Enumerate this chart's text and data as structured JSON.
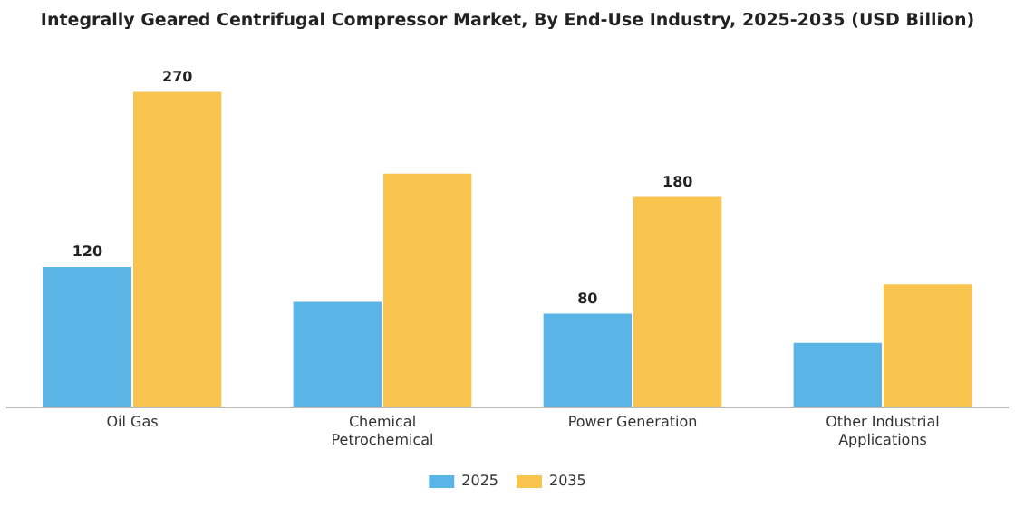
{
  "chart_data": {
    "type": "bar",
    "title": "Integrally Geared Centrifugal Compressor Market, By End-Use Industry, 2025-2035 (USD Billion)",
    "categories": [
      "Oil Gas",
      "Chemical Petrochemical",
      "Power Generation",
      "Other Industrial Applications"
    ],
    "series": [
      {
        "name": "2025",
        "color": "#5ab4e5",
        "values": [
          120,
          90,
          80,
          55
        ],
        "value_labels": [
          "120",
          null,
          "80",
          null
        ]
      },
      {
        "name": "2035",
        "color": "#f9c44e",
        "values": [
          270,
          200,
          180,
          105
        ],
        "value_labels": [
          "270",
          null,
          "180",
          null
        ]
      }
    ],
    "legend": "bottom",
    "grid": false
  }
}
